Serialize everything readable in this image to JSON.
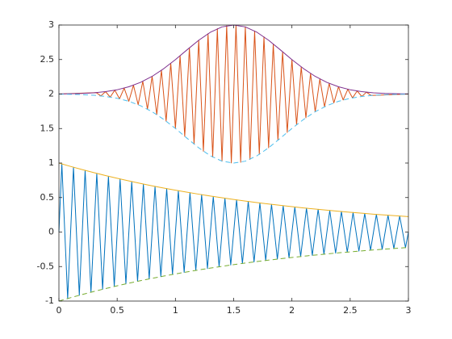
{
  "chart_data": {
    "type": "line",
    "xlim": [
      0,
      3
    ],
    "ylim": [
      -1,
      3
    ],
    "xticks": [
      0,
      0.5,
      1,
      1.5,
      2,
      2.5,
      3
    ],
    "yticks": [
      -1,
      -0.5,
      0,
      0.5,
      1,
      1.5,
      2,
      2.5,
      3
    ],
    "grid": false,
    "series": [
      {
        "color": "#0072BD",
        "dash": false,
        "x": [
          0,
          0.025,
          0.075,
          0.125,
          0.175,
          0.225,
          0.275,
          0.325,
          0.375,
          0.425,
          0.475,
          0.525,
          0.575,
          0.625,
          0.675,
          0.725,
          0.775,
          0.825,
          0.875,
          0.925,
          0.975,
          1.025,
          1.075,
          1.125,
          1.175,
          1.225,
          1.275,
          1.325,
          1.375,
          1.425,
          1.475,
          1.525,
          1.575,
          1.625,
          1.675,
          1.725,
          1.775,
          1.825,
          1.875,
          1.925,
          1.975,
          2.025,
          2.075,
          2.125,
          2.175,
          2.225,
          2.275,
          2.325,
          2.375,
          2.425,
          2.475,
          2.525,
          2.575,
          2.625,
          2.675,
          2.725,
          2.775,
          2.825,
          2.875,
          2.925,
          2.975,
          3
        ],
        "values": [
          0,
          0.988,
          -0.963,
          0.939,
          -0.916,
          0.894,
          -0.872,
          0.85,
          -0.829,
          0.809,
          -0.789,
          0.769,
          -0.75,
          0.732,
          -0.714,
          0.696,
          -0.679,
          0.662,
          -0.646,
          0.63,
          -0.614,
          0.599,
          -0.584,
          0.57,
          -0.556,
          0.542,
          -0.529,
          0.516,
          -0.503,
          0.49,
          -0.478,
          0.467,
          -0.455,
          0.444,
          -0.433,
          0.422,
          -0.412,
          0.401,
          -0.392,
          0.382,
          -0.373,
          0.363,
          -0.354,
          0.346,
          -0.337,
          0.329,
          -0.321,
          0.313,
          -0.305,
          0.298,
          -0.29,
          0.283,
          -0.276,
          0.269,
          -0.263,
          0.256,
          -0.25,
          0.244,
          -0.238,
          0.232,
          -0.226,
          0
        ]
      },
      {
        "color": "#EDB120",
        "dash": false,
        "x": [
          0,
          0.1,
          0.2,
          0.3,
          0.4,
          0.5,
          0.6,
          0.7,
          0.8,
          0.9,
          1,
          1.1,
          1.2,
          1.3,
          1.4,
          1.5,
          1.6,
          1.7,
          1.8,
          1.9,
          2,
          2.1,
          2.2,
          2.3,
          2.4,
          2.5,
          2.6,
          2.7,
          2.8,
          2.9,
          3
        ],
        "values": [
          1,
          0.951,
          0.905,
          0.861,
          0.819,
          0.779,
          0.741,
          0.705,
          0.67,
          0.638,
          0.607,
          0.577,
          0.549,
          0.522,
          0.497,
          0.472,
          0.449,
          0.427,
          0.407,
          0.387,
          0.368,
          0.35,
          0.333,
          0.317,
          0.301,
          0.287,
          0.273,
          0.259,
          0.247,
          0.235,
          0.223
        ]
      },
      {
        "color": "#77AC30",
        "dash": true,
        "x": [
          0,
          0.1,
          0.2,
          0.3,
          0.4,
          0.5,
          0.6,
          0.7,
          0.8,
          0.9,
          1,
          1.1,
          1.2,
          1.3,
          1.4,
          1.5,
          1.6,
          1.7,
          1.8,
          1.9,
          2,
          2.1,
          2.2,
          2.3,
          2.4,
          2.5,
          2.6,
          2.7,
          2.8,
          2.9,
          3
        ],
        "values": [
          -1,
          -0.951,
          -0.905,
          -0.861,
          -0.819,
          -0.779,
          -0.741,
          -0.705,
          -0.67,
          -0.638,
          -0.607,
          -0.577,
          -0.549,
          -0.522,
          -0.497,
          -0.472,
          -0.449,
          -0.427,
          -0.407,
          -0.387,
          -0.368,
          -0.35,
          -0.333,
          -0.317,
          -0.301,
          -0.287,
          -0.273,
          -0.259,
          -0.247,
          -0.235,
          -0.223
        ]
      },
      {
        "color": "#D95319",
        "dash": false,
        "x": [
          0,
          0.32,
          0.36,
          0.4,
          0.44,
          0.48,
          0.52,
          0.56,
          0.6,
          0.64,
          0.68,
          0.72,
          0.76,
          0.8,
          0.84,
          0.88,
          0.92,
          0.96,
          1,
          1.04,
          1.08,
          1.12,
          1.16,
          1.2,
          1.24,
          1.28,
          1.32,
          1.36,
          1.4,
          1.44,
          1.48,
          1.52,
          1.56,
          1.6,
          1.64,
          1.68,
          1.72,
          1.76,
          1.8,
          1.84,
          1.88,
          1.92,
          1.96,
          2,
          2.04,
          2.08,
          2.12,
          2.16,
          2.2,
          2.24,
          2.28,
          2.32,
          2.36,
          2.4,
          2.44,
          2.48,
          2.52,
          2.56,
          2.6,
          2.64,
          2.68,
          3
        ],
        "values": [
          2,
          2.021,
          1.973,
          2.035,
          1.956,
          2.056,
          1.931,
          2.086,
          1.895,
          2.128,
          1.846,
          2.185,
          1.782,
          2.256,
          1.702,
          2.344,
          1.607,
          2.445,
          1.501,
          2.556,
          1.387,
          2.67,
          1.275,
          2.779,
          1.171,
          2.874,
          1.086,
          2.947,
          1.027,
          2.99,
          1.001,
          2.999,
          1.01,
          2.973,
          1.053,
          2.914,
          1.126,
          2.829,
          1.221,
          2.725,
          1.33,
          2.613,
          1.444,
          2.499,
          1.555,
          2.393,
          1.656,
          2.298,
          1.744,
          2.218,
          1.815,
          2.154,
          1.872,
          2.105,
          1.914,
          2.069,
          1.944,
          2.044,
          1.965,
          2.027,
          1.979,
          2
        ]
      },
      {
        "color": "#7E2F8E",
        "dash": false,
        "x": [
          0,
          0.1,
          0.2,
          0.3,
          0.4,
          0.5,
          0.6,
          0.7,
          0.8,
          0.9,
          1,
          1.1,
          1.2,
          1.3,
          1.4,
          1.5,
          1.6,
          1.7,
          1.8,
          1.9,
          2,
          2.1,
          2.2,
          2.3,
          2.4,
          2.5,
          2.6,
          2.7,
          2.8,
          2.9,
          3
        ],
        "values": [
          2.002,
          2.004,
          2.009,
          2.018,
          2.035,
          2.062,
          2.105,
          2.169,
          2.256,
          2.368,
          2.499,
          2.641,
          2.779,
          2.895,
          2.973,
          3,
          2.973,
          2.895,
          2.779,
          2.641,
          2.499,
          2.368,
          2.256,
          2.169,
          2.105,
          2.062,
          2.035,
          2.018,
          2.009,
          2.004,
          2.002
        ]
      },
      {
        "color": "#4DBEEE",
        "dash": true,
        "x": [
          0,
          0.1,
          0.2,
          0.3,
          0.4,
          0.5,
          0.6,
          0.7,
          0.8,
          0.9,
          1,
          1.1,
          1.2,
          1.3,
          1.4,
          1.5,
          1.6,
          1.7,
          1.8,
          1.9,
          2,
          2.1,
          2.2,
          2.3,
          2.4,
          2.5,
          2.6,
          2.7,
          2.8,
          2.9,
          3
        ],
        "values": [
          1.998,
          1.996,
          1.991,
          1.982,
          1.965,
          1.938,
          1.895,
          1.831,
          1.744,
          1.632,
          1.501,
          1.359,
          1.221,
          1.105,
          1.027,
          1,
          1.027,
          1.105,
          1.221,
          1.359,
          1.501,
          1.632,
          1.744,
          1.831,
          1.895,
          1.938,
          1.965,
          1.982,
          1.991,
          1.996,
          1.998
        ]
      }
    ]
  }
}
